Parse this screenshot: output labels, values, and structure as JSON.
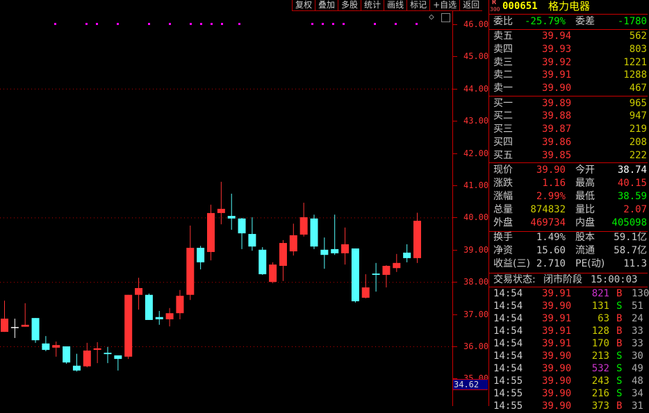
{
  "toolbar": [
    "复权",
    "叠加",
    "多股",
    "统计",
    "画线",
    "标记",
    "+自选",
    "返回"
  ],
  "chart_controls": {
    "diamond": "◇",
    "toggle": "◨"
  },
  "colors": {
    "up": "#ff3333",
    "down": "#54ffff",
    "doji": "#ffffff",
    "grid": "#c00000",
    "marker": "#ff00ff"
  },
  "chart_data": {
    "type": "candlestick",
    "ylim": [
      34.62,
      46.3
    ],
    "y_ticks": [
      "46.00",
      "45.00",
      "44.00",
      "43.00",
      "42.00",
      "41.00",
      "40.00",
      "39.00",
      "38.00",
      "37.00",
      "36.00",
      "35.00"
    ],
    "grid_levels": [
      44,
      40,
      38,
      36
    ],
    "cursor_price": "34.62",
    "candles": [
      [
        36.45,
        37.42,
        36.45,
        36.86
      ],
      [
        36.6,
        36.86,
        36.26,
        36.6
      ],
      [
        36.61,
        37.34,
        36.61,
        36.67
      ],
      [
        36.88,
        36.88,
        36.11,
        36.19
      ],
      [
        36.09,
        36.32,
        35.85,
        35.89
      ],
      [
        35.96,
        36.15,
        35.68,
        36.04
      ],
      [
        36.0,
        36.0,
        35.46,
        35.5
      ],
      [
        35.4,
        35.77,
        35.22,
        35.25
      ],
      [
        35.38,
        36.11,
        35.35,
        35.87
      ],
      [
        35.89,
        36.13,
        35.48,
        35.94
      ],
      [
        35.8,
        35.98,
        35.48,
        35.76
      ],
      [
        35.72,
        35.72,
        35.25,
        35.61
      ],
      [
        35.68,
        37.6,
        35.61,
        37.6
      ],
      [
        37.6,
        38.13,
        37.14,
        37.81
      ],
      [
        37.6,
        37.64,
        36.82,
        36.82
      ],
      [
        36.91,
        37.1,
        36.67,
        36.84
      ],
      [
        36.84,
        37.19,
        36.62,
        37.03
      ],
      [
        37.03,
        37.75,
        36.84,
        37.57
      ],
      [
        37.6,
        39.75,
        37.44,
        39.06
      ],
      [
        39.06,
        39.12,
        38.39,
        38.61
      ],
      [
        38.93,
        40.4,
        38.67,
        40.14
      ],
      [
        40.14,
        41.11,
        39.79,
        40.27
      ],
      [
        40.05,
        40.74,
        39.62,
        39.97
      ],
      [
        39.97,
        39.99,
        39.02,
        39.51
      ],
      [
        39.49,
        40.01,
        38.97,
        39.1
      ],
      [
        39.0,
        39.08,
        38.22,
        38.24
      ],
      [
        38.0,
        38.61,
        37.96,
        38.54
      ],
      [
        38.5,
        39.3,
        38.03,
        39.21
      ],
      [
        38.95,
        39.81,
        38.82,
        39.45
      ],
      [
        39.47,
        40.46,
        39.41,
        40.01
      ],
      [
        39.97,
        40.09,
        39.02,
        39.1
      ],
      [
        39.0,
        39.38,
        38.41,
        38.84
      ],
      [
        39.02,
        40.09,
        38.84,
        38.89
      ],
      [
        38.89,
        39.69,
        38.54,
        39.17
      ],
      [
        39.04,
        39.04,
        37.36,
        37.4
      ],
      [
        37.51,
        38.24,
        37.49,
        37.83
      ],
      [
        38.26,
        38.59,
        37.7,
        38.22
      ],
      [
        38.22,
        38.52,
        37.83,
        38.5
      ],
      [
        38.43,
        38.87,
        38.31,
        38.59
      ],
      [
        38.91,
        39.17,
        38.61,
        38.74
      ],
      [
        38.74,
        40.15,
        38.59,
        39.9
      ]
    ]
  },
  "header": {
    "badge": "R",
    "badge_sub": "300",
    "code": "000651",
    "name": "格力电器"
  },
  "weibi": {
    "label": "委比",
    "value": "-25.79%",
    "diff_label": "委差",
    "diff": "-1780"
  },
  "sell": [
    {
      "label": "卖五",
      "price": "39.94",
      "vol": "562"
    },
    {
      "label": "卖四",
      "price": "39.93",
      "vol": "803"
    },
    {
      "label": "卖三",
      "price": "39.92",
      "vol": "1221"
    },
    {
      "label": "卖二",
      "price": "39.91",
      "vol": "1288"
    },
    {
      "label": "卖一",
      "price": "39.90",
      "vol": "467"
    }
  ],
  "buy": [
    {
      "label": "买一",
      "price": "39.89",
      "vol": "965"
    },
    {
      "label": "买二",
      "price": "39.88",
      "vol": "947"
    },
    {
      "label": "买三",
      "price": "39.87",
      "vol": "219"
    },
    {
      "label": "买四",
      "price": "39.86",
      "vol": "208"
    },
    {
      "label": "买五",
      "price": "39.85",
      "vol": "222"
    }
  ],
  "quote": [
    {
      "l1": "现价",
      "v1": "39.90",
      "c1": "red",
      "l2": "今开",
      "v2": "38.74",
      "c2": "wht"
    },
    {
      "l1": "涨跌",
      "v1": "1.16",
      "c1": "red",
      "l2": "最高",
      "v2": "40.15",
      "c2": "red"
    },
    {
      "l1": "涨幅",
      "v1": "2.99%",
      "c1": "red",
      "l2": "最低",
      "v2": "38.59",
      "c2": "grn"
    },
    {
      "l1": "总量",
      "v1": "874832",
      "c1": "yel",
      "l2": "量比",
      "v2": "2.07",
      "c2": "red"
    },
    {
      "l1": "外盘",
      "v1": "469734",
      "c1": "red",
      "l2": "内盘",
      "v2": "405098",
      "c2": "grn"
    }
  ],
  "finance": [
    {
      "l1": "换手",
      "v1": "1.49%",
      "c1": "gry",
      "l2": "股本",
      "v2": "59.1亿",
      "c2": "gry"
    },
    {
      "l1": "净资",
      "v1": "15.60",
      "c1": "gry",
      "l2": "流通",
      "v2": "58.7亿",
      "c2": "gry"
    },
    {
      "l1": "收益(三)",
      "v1": "2.710",
      "c1": "gry",
      "l2": "PE(动)",
      "v2": "11.3",
      "c2": "gry"
    }
  ],
  "status": {
    "label": "交易状态:",
    "value": "闭市阶段",
    "time": "15:00:03"
  },
  "ticks": [
    {
      "time": "14:54",
      "price": "39.91",
      "vol": "821",
      "vc": "mag",
      "side": "B",
      "n": "130"
    },
    {
      "time": "14:54",
      "price": "39.90",
      "vol": "131",
      "vc": "yel",
      "side": "S",
      "n": "51"
    },
    {
      "time": "14:54",
      "price": "39.91",
      "vol": "63",
      "vc": "yel",
      "side": "B",
      "n": "24"
    },
    {
      "time": "14:54",
      "price": "39.91",
      "vol": "128",
      "vc": "yel",
      "side": "B",
      "n": "33"
    },
    {
      "time": "14:54",
      "price": "39.91",
      "vol": "170",
      "vc": "yel",
      "side": "B",
      "n": "33"
    },
    {
      "time": "14:54",
      "price": "39.90",
      "vol": "213",
      "vc": "yel",
      "side": "S",
      "n": "30"
    },
    {
      "time": "14:54",
      "price": "39.90",
      "vol": "532",
      "vc": "mag",
      "side": "S",
      "n": "49"
    },
    {
      "time": "14:55",
      "price": "39.90",
      "vol": "243",
      "vc": "yel",
      "side": "S",
      "n": "48"
    },
    {
      "time": "14:55",
      "price": "39.90",
      "vol": "216",
      "vc": "yel",
      "side": "S",
      "n": "34"
    },
    {
      "time": "14:55",
      "price": "39.90",
      "vol": "373",
      "vc": "yel",
      "side": "B",
      "n": "31"
    }
  ]
}
